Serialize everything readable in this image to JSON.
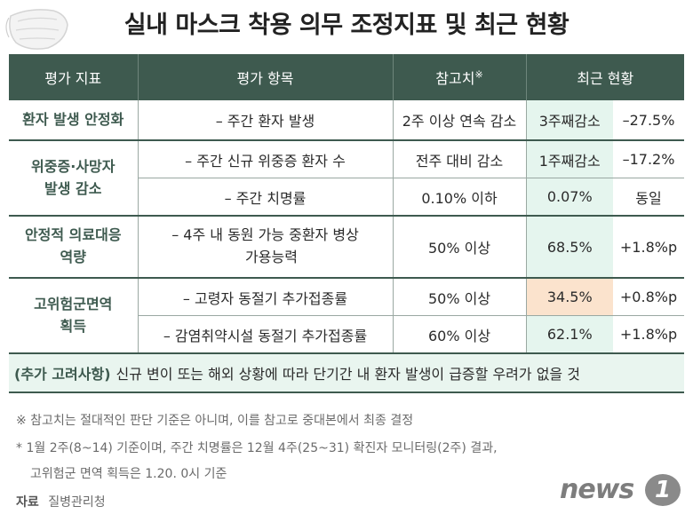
{
  "title": "실내 마스크 착용 의무 조정지표 및 최근 현황",
  "table": {
    "headers": {
      "indicator": "평가 지표",
      "item": "평가 항목",
      "reference": "참고치",
      "reference_mark": "※",
      "current": "최근 현황"
    },
    "groups": [
      {
        "category": "환자 발생 안정화",
        "rows": [
          {
            "item": "– 주간 환자 발생",
            "reference": "2주 이상 연속 감소",
            "status": "3주째감소",
            "change": "–27.5%"
          }
        ]
      },
      {
        "category": "위중증·사망자 발생 감소",
        "category_line1": "위중증·사망자",
        "category_line2": "발생 감소",
        "rows": [
          {
            "item": "– 주간 신규 위중증 환자 수",
            "reference": "전주 대비 감소",
            "status": "1주째감소",
            "change": "–17.2%"
          },
          {
            "item": "– 주간 치명률",
            "reference": "0.10% 이하",
            "status": "0.07%",
            "change": "동일"
          }
        ]
      },
      {
        "category_line1": "안정적 의료대응",
        "category_line2": "역량",
        "rows": [
          {
            "item_line1": "– 4주 내 동원 가능 중환자 병상",
            "item_line2": "가용능력",
            "reference": "50% 이상",
            "status": "68.5%",
            "change": "+1.8%p"
          }
        ]
      },
      {
        "category_line1": "고위험군면역",
        "category_line2": "획득",
        "rows": [
          {
            "item": "– 고령자 동절기 추가접종률",
            "reference": "50% 이상",
            "status": "34.5%",
            "change": "+0.8%p"
          },
          {
            "item": "– 감염취약시설 동절기 추가접종률",
            "reference": "60% 이상",
            "status": "62.1%",
            "change": "+1.8%p"
          }
        ]
      }
    ]
  },
  "note": {
    "key": "(추가 고려사항)",
    "text": "신규 변이 또는 해외 상황에 따라 단기간 내 환자 발생이 급증할 우려가 없을 것"
  },
  "footnotes": {
    "line1": "※ 참고치는 절대적인 판단 기준은 아니며, 이를 참고로 중대본에서 최종 결정",
    "line2": "* 1월 2주(8~14) 기준이며, 주간 치명률은 12월 4주(25~31) 확진자 모니터링(2주) 결과,",
    "line3": "고위험군 면역 획득은 1.20. 0시 기준",
    "source_label": "자료",
    "source": "질병관리청"
  },
  "logo": {
    "text": "news",
    "badge": "1"
  },
  "colors": {
    "header_bg": "#3e5a4f",
    "category_text": "#3e5a4f",
    "status_bg": "#e5f5ee",
    "highlight_bg": "#fbe3cd",
    "note_bg": "#e9f5ef"
  }
}
